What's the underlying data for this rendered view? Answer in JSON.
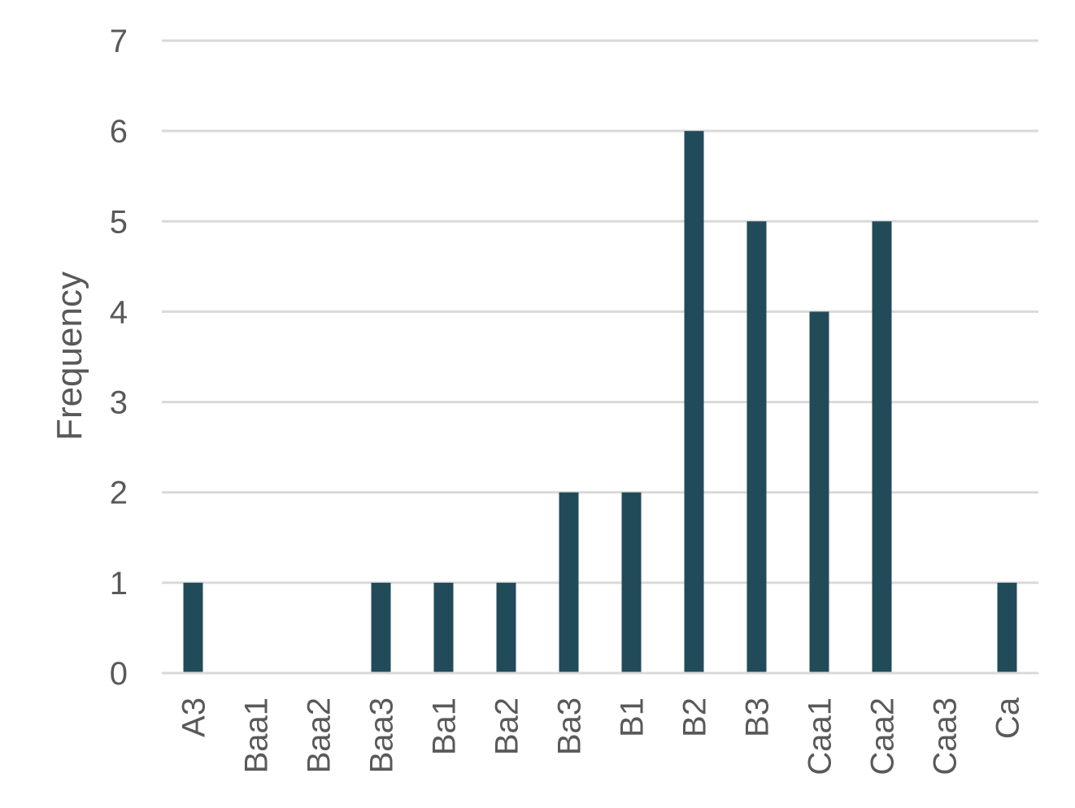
{
  "chart_data": {
    "type": "bar",
    "categories": [
      "A3",
      "Baa1",
      "Baa2",
      "Baa3",
      "Ba1",
      "Ba2",
      "Ba3",
      "B1",
      "B2",
      "B3",
      "Caa1",
      "Caa2",
      "Caa3",
      "Ca"
    ],
    "values": [
      1,
      0,
      0,
      1,
      1,
      1,
      2,
      2,
      6,
      5,
      4,
      5,
      0,
      1
    ],
    "title": "",
    "xlabel": "",
    "ylabel": "Frequency",
    "ylim": [
      0,
      7
    ],
    "yticks": [
      "0",
      "1",
      "2",
      "3",
      "4",
      "5",
      "6",
      "7"
    ],
    "grid": true,
    "legend": "none",
    "bar_color": "#224B5A"
  }
}
